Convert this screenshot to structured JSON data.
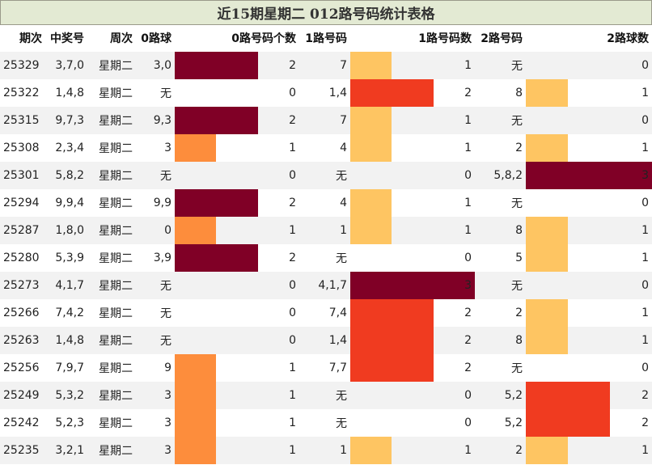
{
  "title": "近15期星期二 012路号码统计表格",
  "headers": [
    "期次",
    "中奖号",
    "周次",
    "0路球",
    "0路号码个数",
    "1路号码",
    "1路号码数",
    "2路号码",
    "2路球数"
  ],
  "colors": {
    "count_1": "#fd8d3c",
    "count_2": "#f03b20",
    "count_3": "#800026",
    "count_1_light": "#fec562",
    "title_bg": "#e3ead3"
  },
  "rows": [
    {
      "issue": "25329",
      "number": "3,7,0",
      "weekday": "星期二",
      "r0": "3,0",
      "c0": 2,
      "r1": "7",
      "c1": 1,
      "r2": "无",
      "c2": 0
    },
    {
      "issue": "25322",
      "number": "1,4,8",
      "weekday": "星期二",
      "r0": "无",
      "c0": 0,
      "r1": "1,4",
      "c1": 2,
      "r2": "8",
      "c2": 1
    },
    {
      "issue": "25315",
      "number": "9,7,3",
      "weekday": "星期二",
      "r0": "9,3",
      "c0": 2,
      "r1": "7",
      "c1": 1,
      "r2": "无",
      "c2": 0
    },
    {
      "issue": "25308",
      "number": "2,3,4",
      "weekday": "星期二",
      "r0": "3",
      "c0": 1,
      "r1": "4",
      "c1": 1,
      "r2": "2",
      "c2": 1
    },
    {
      "issue": "25301",
      "number": "5,8,2",
      "weekday": "星期二",
      "r0": "无",
      "c0": 0,
      "r1": "无",
      "c1": 0,
      "r2": "5,8,2",
      "c2": 3
    },
    {
      "issue": "25294",
      "number": "9,9,4",
      "weekday": "星期二",
      "r0": "9,9",
      "c0": 2,
      "r1": "4",
      "c1": 1,
      "r2": "无",
      "c2": 0
    },
    {
      "issue": "25287",
      "number": "1,8,0",
      "weekday": "星期二",
      "r0": "0",
      "c0": 1,
      "r1": "1",
      "c1": 1,
      "r2": "8",
      "c2": 1
    },
    {
      "issue": "25280",
      "number": "5,3,9",
      "weekday": "星期二",
      "r0": "3,9",
      "c0": 2,
      "r1": "无",
      "c1": 0,
      "r2": "5",
      "c2": 1
    },
    {
      "issue": "25273",
      "number": "4,1,7",
      "weekday": "星期二",
      "r0": "无",
      "c0": 0,
      "r1": "4,1,7",
      "c1": 3,
      "r2": "无",
      "c2": 0
    },
    {
      "issue": "25266",
      "number": "7,4,2",
      "weekday": "星期二",
      "r0": "无",
      "c0": 0,
      "r1": "7,4",
      "c1": 2,
      "r2": "2",
      "c2": 1
    },
    {
      "issue": "25263",
      "number": "1,4,8",
      "weekday": "星期二",
      "r0": "无",
      "c0": 0,
      "r1": "1,4",
      "c1": 2,
      "r2": "8",
      "c2": 1
    },
    {
      "issue": "25256",
      "number": "7,9,7",
      "weekday": "星期二",
      "r0": "9",
      "c0": 1,
      "r1": "7,7",
      "c1": 2,
      "r2": "无",
      "c2": 0
    },
    {
      "issue": "25249",
      "number": "5,3,2",
      "weekday": "星期二",
      "r0": "3",
      "c0": 1,
      "r1": "无",
      "c1": 0,
      "r2": "5,2",
      "c2": 2
    },
    {
      "issue": "25242",
      "number": "5,2,3",
      "weekday": "星期二",
      "r0": "3",
      "c0": 1,
      "r1": "无",
      "c1": 0,
      "r2": "5,2",
      "c2": 2
    },
    {
      "issue": "25235",
      "number": "3,2,1",
      "weekday": "星期二",
      "r0": "3",
      "c0": 1,
      "r1": "1",
      "c1": 1,
      "r2": "2",
      "c2": 1
    }
  ]
}
